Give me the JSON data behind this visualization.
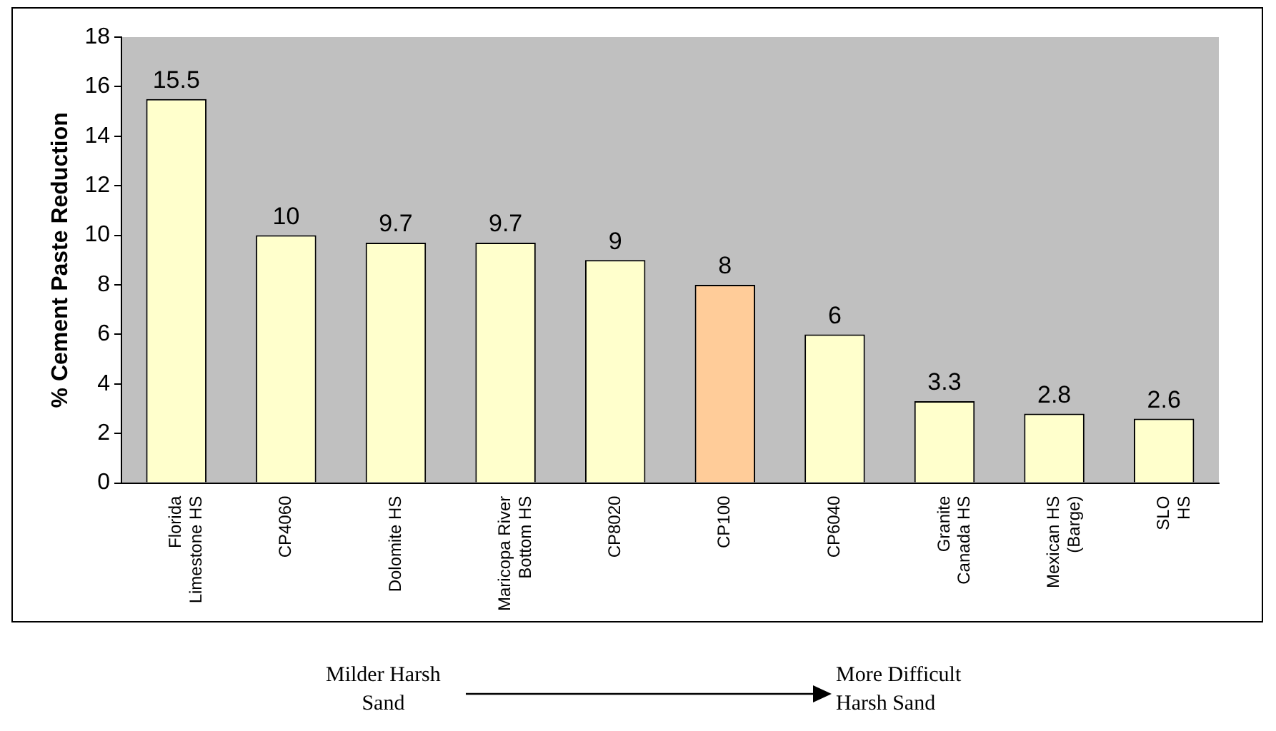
{
  "chart_data": {
    "type": "bar",
    "ylabel": "% Cement Paste Reduction",
    "categories": [
      "Florida\nLimestone HS",
      "CP4060",
      "Dolomite HS",
      "Maricopa River\nBottom HS",
      "CP8020",
      "CP100",
      "CP6040",
      "Granite\nCanada HS",
      "Mexican HS\n(Barge)",
      "SLO\nHS"
    ],
    "values": [
      15.5,
      10,
      9.7,
      9.7,
      9,
      8,
      6,
      3.3,
      2.8,
      2.6
    ],
    "colors": [
      "#ffffcc",
      "#ffffcc",
      "#ffffcc",
      "#ffffcc",
      "#ffffcc",
      "#ffcc99",
      "#ffffcc",
      "#ffffcc",
      "#ffffcc",
      "#ffffcc"
    ],
    "ylim": [
      0,
      18
    ],
    "yticks": [
      0,
      2,
      4,
      6,
      8,
      10,
      12,
      14,
      16,
      18
    ],
    "grid": false,
    "legend": false,
    "data_labels": true,
    "annotations": [
      "Milder Harsh\nSand",
      "More Difficult\nHarsh  Sand"
    ]
  }
}
